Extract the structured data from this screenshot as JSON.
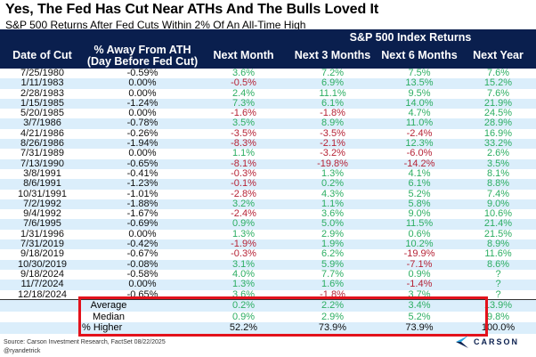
{
  "title": "Yes, The Fed Has Cut Near ATHs And The Bulls Loved It",
  "subtitle": "S&P 500 Returns After Fed Cuts Within 2% Of An All-Time High",
  "header": {
    "group_label": "S&P 500 Index Returns",
    "columns": [
      "Date of Cut",
      "% Away From ATH",
      "(Day Before Fed Cut)",
      "Next Month",
      "Next 3 Months",
      "Next 6 Months",
      "Next Year"
    ]
  },
  "colors": {
    "positive": "#2dae63",
    "negative": "#b62437",
    "header_bg": "#0a1f4e",
    "alt_row": "#dbeefb",
    "highlight_box": "#e3121c"
  },
  "chart_data": {
    "type": "table",
    "title": "Yes, The Fed Has Cut Near ATHs And The Bulls Loved It",
    "subtitle": "S&P 500 Returns After Fed Cuts Within 2% Of An All-Time High",
    "columns": [
      "Date of Cut",
      "% Away From ATH (Day Before Fed Cut)",
      "Next Month",
      "Next 3 Months",
      "Next 6 Months",
      "Next Year"
    ],
    "rows": [
      [
        "7/25/1980",
        "-0.59%",
        "3.6%",
        "7.2%",
        "7.5%",
        "7.6%"
      ],
      [
        "1/11/1983",
        "0.00%",
        "-0.5%",
        "6.9%",
        "13.5%",
        "15.2%"
      ],
      [
        "2/28/1983",
        "0.00%",
        "2.4%",
        "11.1%",
        "9.5%",
        "7.6%"
      ],
      [
        "1/15/1985",
        "-1.24%",
        "7.3%",
        "6.1%",
        "14.0%",
        "21.9%"
      ],
      [
        "5/20/1985",
        "0.00%",
        "-1.6%",
        "-1.8%",
        "4.7%",
        "24.5%"
      ],
      [
        "3/7/1986",
        "-0.78%",
        "3.5%",
        "8.9%",
        "11.0%",
        "28.9%"
      ],
      [
        "4/21/1986",
        "-0.26%",
        "-3.5%",
        "-3.5%",
        "-2.4%",
        "16.9%"
      ],
      [
        "8/26/1986",
        "-1.94%",
        "-8.3%",
        "-2.1%",
        "12.3%",
        "33.2%"
      ],
      [
        "7/31/1989",
        "0.00%",
        "1.1%",
        "-3.2%",
        "-6.0%",
        "2.6%"
      ],
      [
        "7/13/1990",
        "-0.65%",
        "-8.1%",
        "-19.8%",
        "-14.2%",
        "3.5%"
      ],
      [
        "3/8/1991",
        "-0.41%",
        "-0.3%",
        "1.3%",
        "4.1%",
        "8.1%"
      ],
      [
        "8/6/1991",
        "-1.23%",
        "-0.1%",
        "0.2%",
        "6.1%",
        "8.8%"
      ],
      [
        "10/31/1991",
        "-1.01%",
        "-2.8%",
        "4.3%",
        "5.2%",
        "7.4%"
      ],
      [
        "7/2/1992",
        "-1.88%",
        "3.2%",
        "1.1%",
        "5.8%",
        "9.0%"
      ],
      [
        "9/4/1992",
        "-1.67%",
        "-2.4%",
        "3.6%",
        "9.0%",
        "10.6%"
      ],
      [
        "7/6/1995",
        "-0.69%",
        "0.9%",
        "5.0%",
        "11.5%",
        "21.4%"
      ],
      [
        "1/31/1996",
        "0.00%",
        "1.3%",
        "2.9%",
        "0.6%",
        "21.5%"
      ],
      [
        "7/31/2019",
        "-0.42%",
        "-1.9%",
        "1.9%",
        "10.2%",
        "8.9%"
      ],
      [
        "9/18/2019",
        "-0.67%",
        "-0.3%",
        "6.2%",
        "-19.9%",
        "11.6%"
      ],
      [
        "10/30/2019",
        "-0.08%",
        "3.1%",
        "5.9%",
        "-7.1%",
        "8.6%"
      ],
      [
        "9/18/2024",
        "-0.58%",
        "4.0%",
        "7.7%",
        "0.9%",
        "?"
      ],
      [
        "11/7/2024",
        "0.00%",
        "1.3%",
        "1.6%",
        "-1.4%",
        "?"
      ],
      [
        "12/18/2024",
        "-0.65%",
        "3.6%",
        "-1.8%",
        "3.7%",
        "?"
      ]
    ],
    "summary": [
      {
        "label": "Average",
        "values": [
          "0.2%",
          "2.2%",
          "3.4%",
          "13.9%"
        ]
      },
      {
        "label": "Median",
        "values": [
          "0.9%",
          "2.9%",
          "5.2%",
          "9.8%"
        ]
      },
      {
        "label": "% Higher",
        "values": [
          "52.2%",
          "73.9%",
          "73.9%",
          "100.0%"
        ]
      }
    ]
  },
  "footer": {
    "source": "Source: Carson Investment Research, FactSet 08/22/2025",
    "handle": "@ryandetrick",
    "logo_text": "CARSON"
  }
}
